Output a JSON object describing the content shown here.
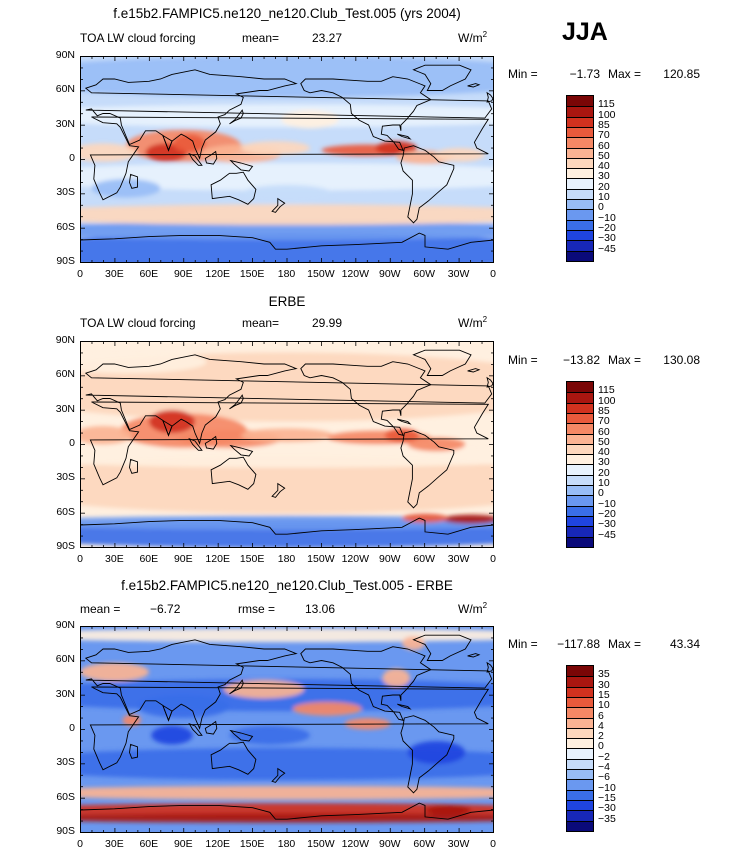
{
  "season": "JJA",
  "palette_main": [
    "#0a0a7a",
    "#1727b8",
    "#1f44e0",
    "#3a6ee8",
    "#6a98f0",
    "#98bdf6",
    "#c6dcfa",
    "#e8f2fd",
    "#fff0e0",
    "#fdd7bd",
    "#fbb393",
    "#f58865",
    "#e95a3c",
    "#d1321f",
    "#a91610",
    "#7a0606"
  ],
  "palette_diff": [
    "#0a0a7a",
    "#1727b8",
    "#1f44e0",
    "#3a6ee8",
    "#6a98f0",
    "#98bdf6",
    "#c6dcfa",
    "#e8f2fd",
    "#ffffff",
    "#fff0e0",
    "#fdd7bd",
    "#fbb393",
    "#f58865",
    "#e95a3c",
    "#d1321f",
    "#a91610",
    "#7a0606"
  ],
  "lat_ticks": [
    "90N",
    "60N",
    "30N",
    "0",
    "30S",
    "60S",
    "90S"
  ],
  "lon_ticks": [
    "0",
    "30E",
    "60E",
    "90E",
    "120E",
    "150E",
    "180",
    "150W",
    "120W",
    "90W",
    "60W",
    "30W",
    "0"
  ],
  "panels": [
    {
      "title": "f.e15b2.FAMPIC5.ne120_ne120.Club_Test.005 (yrs 2004)",
      "left_label": "TOA LW cloud forcing",
      "stat_label": "mean=",
      "stat_value": "23.27",
      "stat2_label": "",
      "stat2_value": "",
      "units": "W/m",
      "units_sup": "2",
      "min_label": "Min =",
      "min_value": "−1.73",
      "max_label": "Max =",
      "max_value": "120.85",
      "levels": [
        "115",
        "100",
        "85",
        "70",
        "60",
        "50",
        "40",
        "30",
        "20",
        "10",
        "0",
        "−10",
        "−20",
        "−30",
        "−45"
      ]
    },
    {
      "title": "ERBE",
      "left_label": "TOA LW cloud forcing",
      "stat_label": "mean=",
      "stat_value": "29.99",
      "stat2_label": "",
      "stat2_value": "",
      "units": "W/m",
      "units_sup": "2",
      "min_label": "Min =",
      "min_value": "−13.82",
      "max_label": "Max =",
      "max_value": "130.08",
      "levels": [
        "115",
        "100",
        "85",
        "70",
        "60",
        "50",
        "40",
        "30",
        "20",
        "10",
        "0",
        "−10",
        "−20",
        "−30",
        "−45"
      ]
    },
    {
      "title": "f.e15b2.FAMPIC5.ne120_ne120.Club_Test.005 - ERBE",
      "left_label": "",
      "stat_label": "mean =",
      "stat_value": "−6.72",
      "stat2_label": "rmse =",
      "stat2_value": "13.06",
      "units": "W/m",
      "units_sup": "2",
      "min_label": "Min =",
      "min_value": "−117.88",
      "max_label": "Max =",
      "max_value": "43.34",
      "levels": [
        "35",
        "30",
        "15",
        "10",
        "6",
        "4",
        "2",
        "0",
        "−2",
        "−4",
        "−6",
        "−10",
        "−15",
        "−30",
        "−35"
      ]
    }
  ],
  "chart_data": [
    {
      "type": "heatmap",
      "title": "f.e15b2.FAMPIC5.ne120_ne120.Club_Test.005 (yrs 2004)",
      "xlabel": "",
      "ylabel": "",
      "x_ticks": [
        "0",
        "30E",
        "60E",
        "90E",
        "120E",
        "150E",
        "180",
        "150W",
        "120W",
        "90W",
        "60W",
        "30W",
        "0"
      ],
      "y_ticks": [
        "90N",
        "60N",
        "30N",
        "0",
        "30S",
        "60S",
        "90S"
      ],
      "contour_levels": [
        -45,
        -30,
        -20,
        -10,
        0,
        10,
        20,
        30,
        40,
        50,
        60,
        70,
        85,
        100,
        115
      ],
      "mean": 23.27,
      "min": -1.73,
      "max": 120.85
    },
    {
      "type": "heatmap",
      "title": "ERBE",
      "xlabel": "",
      "ylabel": "",
      "x_ticks": [
        "0",
        "30E",
        "60E",
        "90E",
        "120E",
        "150E",
        "180",
        "150W",
        "120W",
        "90W",
        "60W",
        "30W",
        "0"
      ],
      "y_ticks": [
        "90N",
        "60N",
        "30N",
        "0",
        "30S",
        "60S",
        "90S"
      ],
      "contour_levels": [
        -45,
        -30,
        -20,
        -10,
        0,
        10,
        20,
        30,
        40,
        50,
        60,
        70,
        85,
        100,
        115
      ],
      "mean": 29.99,
      "min": -13.82,
      "max": 130.08
    },
    {
      "type": "heatmap",
      "title": "f.e15b2.FAMPIC5.ne120_ne120.Club_Test.005 - ERBE",
      "xlabel": "",
      "ylabel": "",
      "x_ticks": [
        "0",
        "30E",
        "60E",
        "90E",
        "120E",
        "150E",
        "180",
        "150W",
        "120W",
        "90W",
        "60W",
        "30W",
        "0"
      ],
      "y_ticks": [
        "90N",
        "60N",
        "30N",
        "0",
        "30S",
        "60S",
        "90S"
      ],
      "contour_levels": [
        -35,
        -30,
        -15,
        -10,
        -6,
        -4,
        -2,
        0,
        2,
        4,
        6,
        10,
        15,
        30,
        35
      ],
      "mean": -6.72,
      "rmse": 13.06,
      "min": -117.88,
      "max": 43.34
    }
  ]
}
